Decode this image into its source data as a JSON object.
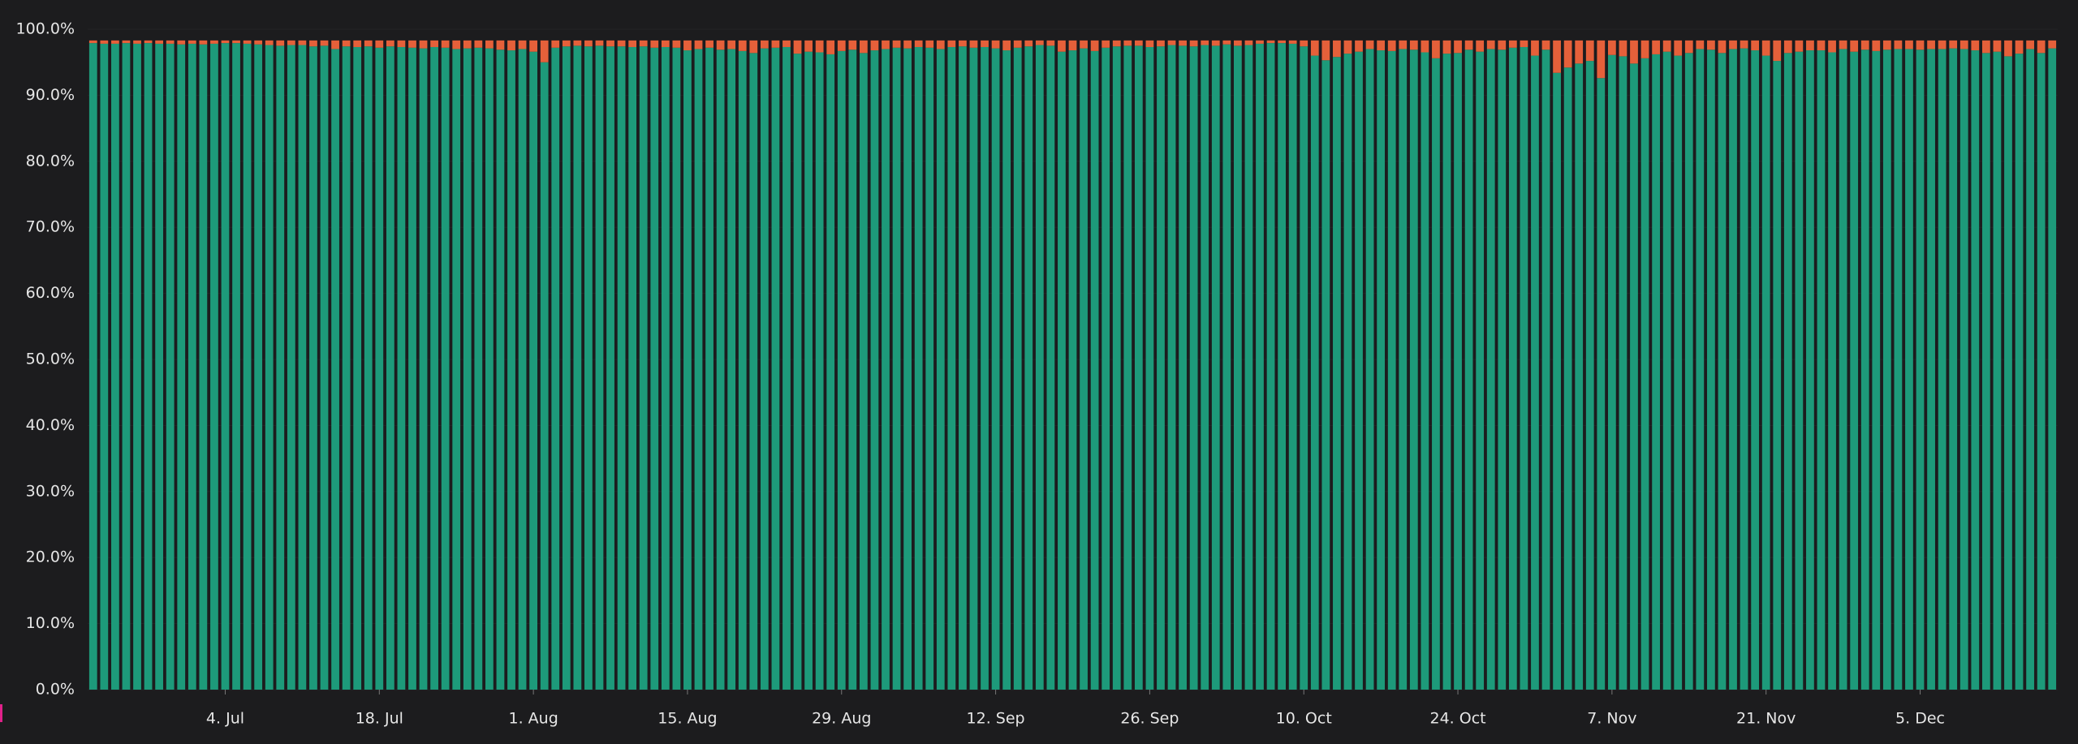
{
  "chart_data": {
    "type": "stacked_bar",
    "categories": [
      null,
      null,
      null,
      null,
      null,
      null,
      null,
      null,
      null,
      null,
      null,
      null,
      "4. Jul",
      null,
      null,
      null,
      null,
      null,
      null,
      null,
      null,
      null,
      null,
      null,
      null,
      null,
      "18. Jul",
      null,
      null,
      null,
      null,
      null,
      null,
      null,
      null,
      null,
      null,
      null,
      null,
      null,
      "1. Aug",
      null,
      null,
      null,
      null,
      null,
      null,
      null,
      null,
      null,
      null,
      null,
      null,
      null,
      "15. Aug",
      null,
      null,
      null,
      null,
      null,
      null,
      null,
      null,
      null,
      null,
      null,
      null,
      null,
      "29. Aug",
      null,
      null,
      null,
      null,
      null,
      null,
      null,
      null,
      null,
      null,
      null,
      null,
      null,
      "12. Sep",
      null,
      null,
      null,
      null,
      null,
      null,
      null,
      null,
      null,
      null,
      null,
      null,
      null,
      "26. Sep",
      null,
      null,
      null,
      null,
      null,
      null,
      null,
      null,
      null,
      null,
      null,
      null,
      null,
      "10. Oct",
      null,
      null,
      null,
      null,
      null,
      null,
      null,
      null,
      null,
      null,
      null,
      null,
      null,
      "24. Oct",
      null,
      null,
      null,
      null,
      null,
      null,
      null,
      null,
      null,
      null,
      null,
      null,
      null,
      "7. Nov",
      null,
      null,
      null,
      null,
      null,
      null,
      null,
      null,
      null,
      null,
      null,
      null,
      null,
      "21. Nov",
      null,
      null,
      null,
      null,
      null,
      null,
      null,
      null,
      null,
      null,
      null,
      null,
      null,
      "5. Dec",
      null,
      null,
      null,
      null,
      null,
      null,
      null,
      null,
      null,
      null,
      null,
      null
    ],
    "series": [
      {
        "color": "#1d9a7a",
        "values": [
          97.9,
          97.8,
          97.8,
          97.9,
          97.8,
          97.9,
          97.8,
          97.8,
          97.7,
          97.8,
          97.7,
          97.8,
          97.9,
          97.9,
          97.8,
          97.7,
          97.6,
          97.5,
          97.6,
          97.6,
          97.4,
          97.5,
          97.0,
          97.4,
          97.3,
          97.4,
          97.2,
          97.4,
          97.3,
          97.2,
          97.1,
          97.3,
          97.2,
          97.0,
          97.1,
          97.2,
          97.1,
          96.9,
          96.8,
          97.0,
          96.6,
          95.0,
          97.2,
          97.4,
          97.5,
          97.4,
          97.5,
          97.4,
          97.4,
          97.3,
          97.4,
          97.2,
          97.3,
          97.2,
          96.8,
          97.0,
          97.2,
          96.9,
          97.0,
          96.7,
          96.4,
          97.1,
          97.2,
          97.3,
          96.3,
          96.6,
          96.5,
          96.2,
          96.7,
          96.9,
          96.4,
          96.8,
          97.0,
          97.2,
          97.1,
          97.3,
          97.2,
          97.0,
          97.3,
          97.4,
          97.2,
          97.3,
          97.1,
          96.8,
          97.2,
          97.4,
          97.6,
          97.5,
          96.6,
          96.8,
          97.1,
          96.7,
          97.2,
          97.4,
          97.5,
          97.5,
          97.3,
          97.4,
          97.6,
          97.5,
          97.4,
          97.6,
          97.5,
          97.7,
          97.5,
          97.6,
          97.8,
          97.9,
          97.9,
          97.8,
          97.4,
          96.0,
          95.3,
          95.8,
          96.3,
          96.6,
          97.0,
          96.8,
          96.7,
          97.0,
          96.9,
          96.5,
          95.6,
          96.3,
          96.4,
          96.9,
          96.6,
          97.0,
          96.9,
          97.2,
          97.3,
          96.0,
          96.9,
          93.4,
          94.2,
          94.8,
          95.2,
          92.6,
          96.1,
          95.9,
          94.8,
          95.6,
          96.2,
          96.6,
          96.0,
          96.4,
          97.0,
          96.9,
          96.4,
          97.0,
          97.1,
          96.8,
          96.0,
          95.2,
          96.4,
          96.6,
          96.8,
          96.8,
          96.5,
          97.0,
          96.6,
          96.9,
          96.7,
          96.9,
          97.0,
          97.0,
          96.9,
          97.0,
          97.0,
          97.1,
          97.0,
          96.8,
          96.4,
          96.6,
          95.9,
          96.3,
          97.0,
          96.4,
          97.1
        ]
      },
      {
        "color": "#e5603a",
        "values": [
          0.4,
          0.5,
          0.5,
          0.4,
          0.5,
          0.4,
          0.5,
          0.5,
          0.6,
          0.5,
          0.6,
          0.5,
          0.4,
          0.4,
          0.5,
          0.6,
          0.7,
          0.8,
          0.7,
          0.7,
          0.9,
          0.8,
          1.3,
          0.9,
          1.0,
          0.9,
          1.1,
          0.9,
          1.0,
          1.1,
          1.2,
          1.0,
          1.1,
          1.3,
          1.2,
          1.1,
          1.2,
          1.4,
          1.5,
          1.3,
          1.7,
          3.3,
          1.1,
          0.9,
          0.8,
          0.9,
          0.8,
          0.9,
          0.9,
          1.0,
          0.9,
          1.1,
          1.0,
          1.1,
          1.5,
          1.3,
          1.1,
          1.4,
          1.3,
          1.6,
          1.9,
          1.2,
          1.1,
          1.0,
          2.0,
          1.7,
          1.8,
          2.1,
          1.6,
          1.4,
          1.9,
          1.5,
          1.3,
          1.1,
          1.2,
          1.0,
          1.1,
          1.3,
          1.0,
          0.9,
          1.1,
          1.0,
          1.2,
          1.5,
          1.1,
          0.9,
          0.7,
          0.8,
          1.7,
          1.5,
          1.2,
          1.6,
          1.1,
          0.9,
          0.8,
          0.8,
          1.0,
          0.9,
          0.7,
          0.8,
          0.9,
          0.7,
          0.8,
          0.6,
          0.8,
          0.7,
          0.5,
          0.4,
          0.4,
          0.5,
          0.9,
          2.3,
          3.0,
          2.5,
          2.0,
          1.7,
          1.3,
          1.5,
          1.6,
          1.3,
          1.4,
          1.8,
          2.7,
          2.0,
          1.9,
          1.4,
          1.7,
          1.3,
          1.4,
          1.1,
          1.0,
          2.3,
          1.4,
          4.9,
          4.1,
          3.5,
          3.1,
          5.7,
          2.2,
          2.4,
          3.5,
          2.7,
          2.1,
          1.7,
          2.3,
          1.9,
          1.3,
          1.4,
          1.9,
          1.3,
          1.2,
          1.5,
          2.3,
          3.1,
          1.9,
          1.7,
          1.5,
          1.5,
          1.8,
          1.3,
          1.7,
          1.4,
          1.6,
          1.4,
          1.3,
          1.3,
          1.4,
          1.3,
          1.3,
          1.2,
          1.3,
          1.5,
          1.9,
          1.7,
          2.4,
          2.0,
          1.3,
          1.9,
          1.2
        ]
      }
    ],
    "ylim": [
      0,
      100
    ],
    "yticks": [
      {
        "value": 0,
        "label": "0.0%"
      },
      {
        "value": 10,
        "label": "10.0%"
      },
      {
        "value": 20,
        "label": "20.0%"
      },
      {
        "value": 30,
        "label": "30.0%"
      },
      {
        "value": 40,
        "label": "40.0%"
      },
      {
        "value": 50,
        "label": "50.0%"
      },
      {
        "value": 60,
        "label": "60.0%"
      },
      {
        "value": 70,
        "label": "70.0%"
      },
      {
        "value": 80,
        "label": "80.0%"
      },
      {
        "value": 90,
        "label": "90.0%"
      },
      {
        "value": 100,
        "label": "100.0%"
      }
    ]
  }
}
